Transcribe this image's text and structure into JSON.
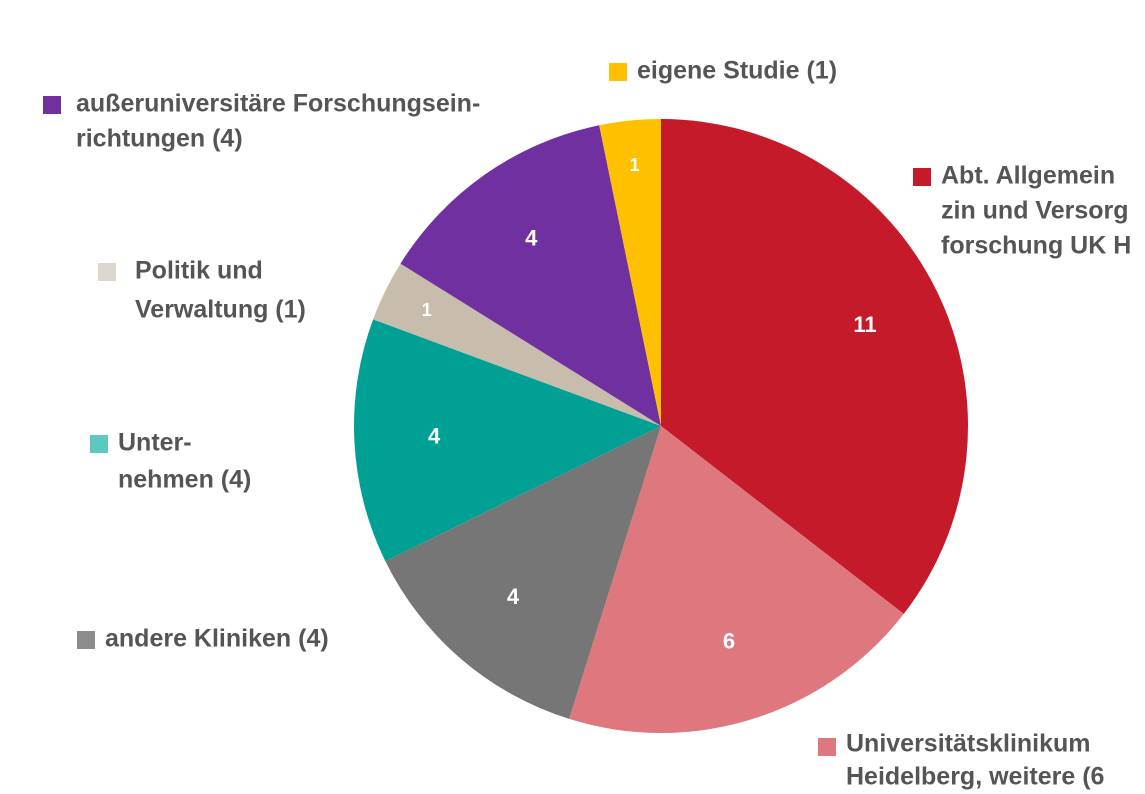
{
  "chart_data": {
    "type": "pie",
    "series": [
      {
        "value": 11,
        "color": "#c41a2a",
        "label_lines": [
          "Abt. Allgemein",
          "zin und Versorg",
          "forschung UK H"
        ]
      },
      {
        "value": 6,
        "color": "#de777e",
        "label_lines": [
          "Universitätsklinikum",
          "Heidelberg, weitere (6"
        ]
      },
      {
        "value": 4,
        "color": "#767676",
        "label_lines": [
          "andere Kliniken (4)"
        ]
      },
      {
        "value": 4,
        "color": "#00a094",
        "label_lines": [
          "Unter-",
          "nehmen (4)"
        ]
      },
      {
        "value": 1,
        "color": "#c8bcac",
        "label_lines": [
          "Politik und",
          "Verwaltung (1)"
        ]
      },
      {
        "value": 4,
        "color": "#7030a0",
        "label_lines": [
          "außeruniversitäre Forschungsein-",
          "richtungen (4)"
        ]
      },
      {
        "value": 1,
        "color": "#ffc000",
        "label_lines": [
          "eigene Studie (1)"
        ]
      }
    ],
    "legend_colors": [
      "#c41a2a",
      "#de777e",
      "#8c8c8c",
      "#5cc8c0",
      "#dcd6cc",
      "#7030a0",
      "#ffc000"
    ]
  }
}
